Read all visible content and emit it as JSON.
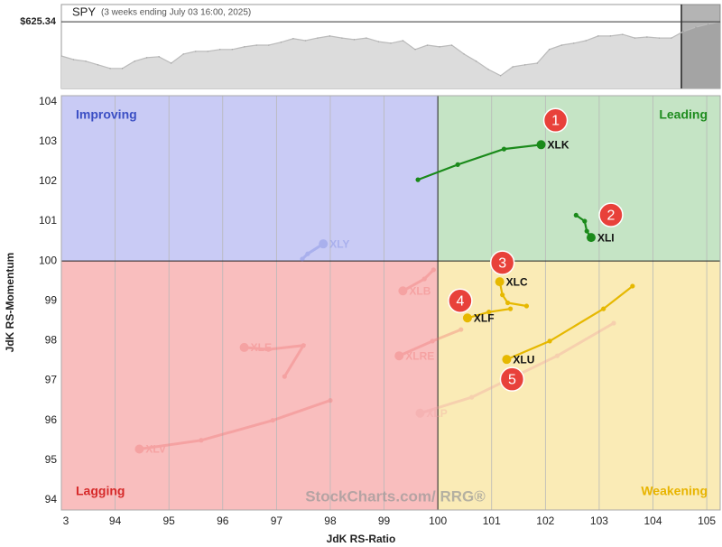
{
  "chart_data": [
    {
      "type": "area",
      "title": "SPY",
      "subtitle": "(3 weeks ending July 03 16:00, 2025)",
      "values": [
        614.9,
        613.8,
        613.3,
        612.2,
        611.1,
        611.1,
        613.3,
        614.4,
        614.7,
        612.7,
        615.5,
        616.3,
        616.3,
        616.9,
        616.9,
        617.7,
        618.2,
        618.2,
        619.1,
        620.2,
        619.6,
        620.4,
        621.0,
        620.4,
        619.9,
        620.4,
        619.3,
        618.8,
        619.6,
        616.9,
        618.2,
        617.7,
        618.2,
        615.5,
        613.3,
        610.8,
        608.9,
        611.6,
        612.2,
        612.7,
        616.9,
        618.2,
        618.8,
        619.6,
        621.0,
        621.0,
        621.5,
        620.4,
        620.7,
        620.4,
        620.4,
        622.4,
        623.7,
        624.6,
        625.34
      ],
      "ylim": [
        605,
        630.6
      ],
      "yticks": [
        {
          "value": 625.34,
          "label": "$625.34"
        }
      ],
      "color": "#808080"
    },
    {
      "type": "rrg",
      "x_label": "JdK RS-Ratio",
      "y_label": "JdK RS-Momentum",
      "watermark": "StockCharts.com/ RRG®",
      "quadrant_labels": {
        "improving": "Improving",
        "leading": "Leading",
        "lagging": "Lagging",
        "weakening": "Weakening"
      },
      "center": [
        100,
        100
      ],
      "xlim": [
        93,
        105.25
      ],
      "ylim": [
        93.75,
        104.15
      ],
      "xticks": [
        {
          "value": 93,
          "label": "3"
        },
        94,
        95,
        96,
        97,
        98,
        99,
        100,
        101,
        102,
        103,
        104,
        105
      ],
      "yticks": [
        94,
        95,
        96,
        97,
        98,
        99,
        100,
        101,
        102,
        103,
        104
      ],
      "grid": true,
      "series": [
        {
          "name": "XLK",
          "color": "#1a8a1a",
          "faded": false,
          "callout": "1",
          "x": [
            99.63,
            100.37,
            101.23,
            101.92
          ],
          "y": [
            102.04,
            102.42,
            102.81,
            102.92
          ]
        },
        {
          "name": "XLI",
          "color": "#1a8a1a",
          "faded": false,
          "callout": "2",
          "x": [
            102.57,
            102.73,
            102.77,
            102.85
          ],
          "y": [
            101.15,
            101.0,
            100.75,
            100.59
          ]
        },
        {
          "name": "XLC",
          "color": "#e6b800",
          "faded": false,
          "callout": "3",
          "x": [
            101.65,
            101.3,
            101.2,
            101.15
          ],
          "y": [
            98.87,
            98.95,
            99.15,
            99.48
          ]
        },
        {
          "name": "XLF",
          "color": "#e6b800",
          "faded": false,
          "callout": "4",
          "x": [
            101.35,
            100.95,
            100.55
          ],
          "y": [
            98.8,
            98.72,
            98.57
          ]
        },
        {
          "name": "XLU",
          "color": "#e6b800",
          "faded": false,
          "callout": "5",
          "x": [
            103.62,
            103.08,
            102.08,
            101.28
          ],
          "y": [
            99.37,
            98.8,
            97.99,
            97.53
          ]
        },
        {
          "name": "XLY",
          "color": "#6f7fe0",
          "faded": true,
          "x": [
            97.48,
            97.58,
            97.87
          ],
          "y": [
            100.05,
            100.18,
            100.43
          ]
        },
        {
          "name": "XLB",
          "color": "#f07070",
          "faded": true,
          "x": [
            99.92,
            99.75,
            99.35
          ],
          "y": [
            99.78,
            99.55,
            99.25
          ]
        },
        {
          "name": "XLE",
          "color": "#f07070",
          "faded": true,
          "x": [
            97.15,
            97.5,
            96.85,
            96.4
          ],
          "y": [
            97.1,
            97.88,
            97.78,
            97.83
          ]
        },
        {
          "name": "XLRE",
          "color": "#f07070",
          "faded": true,
          "x": [
            100.43,
            99.9,
            99.28
          ],
          "y": [
            98.28,
            97.99,
            97.62
          ]
        },
        {
          "name": "XLP",
          "color": "#f0a0a0",
          "faded": true,
          "x": [
            103.27,
            102.22,
            100.63,
            99.67
          ],
          "y": [
            98.44,
            97.62,
            96.58,
            96.18
          ]
        },
        {
          "name": "XLV",
          "color": "#f07070",
          "faded": true,
          "x": [
            98.0,
            96.93,
            95.6,
            94.45
          ],
          "y": [
            96.5,
            96.0,
            95.5,
            95.28
          ]
        }
      ]
    }
  ]
}
